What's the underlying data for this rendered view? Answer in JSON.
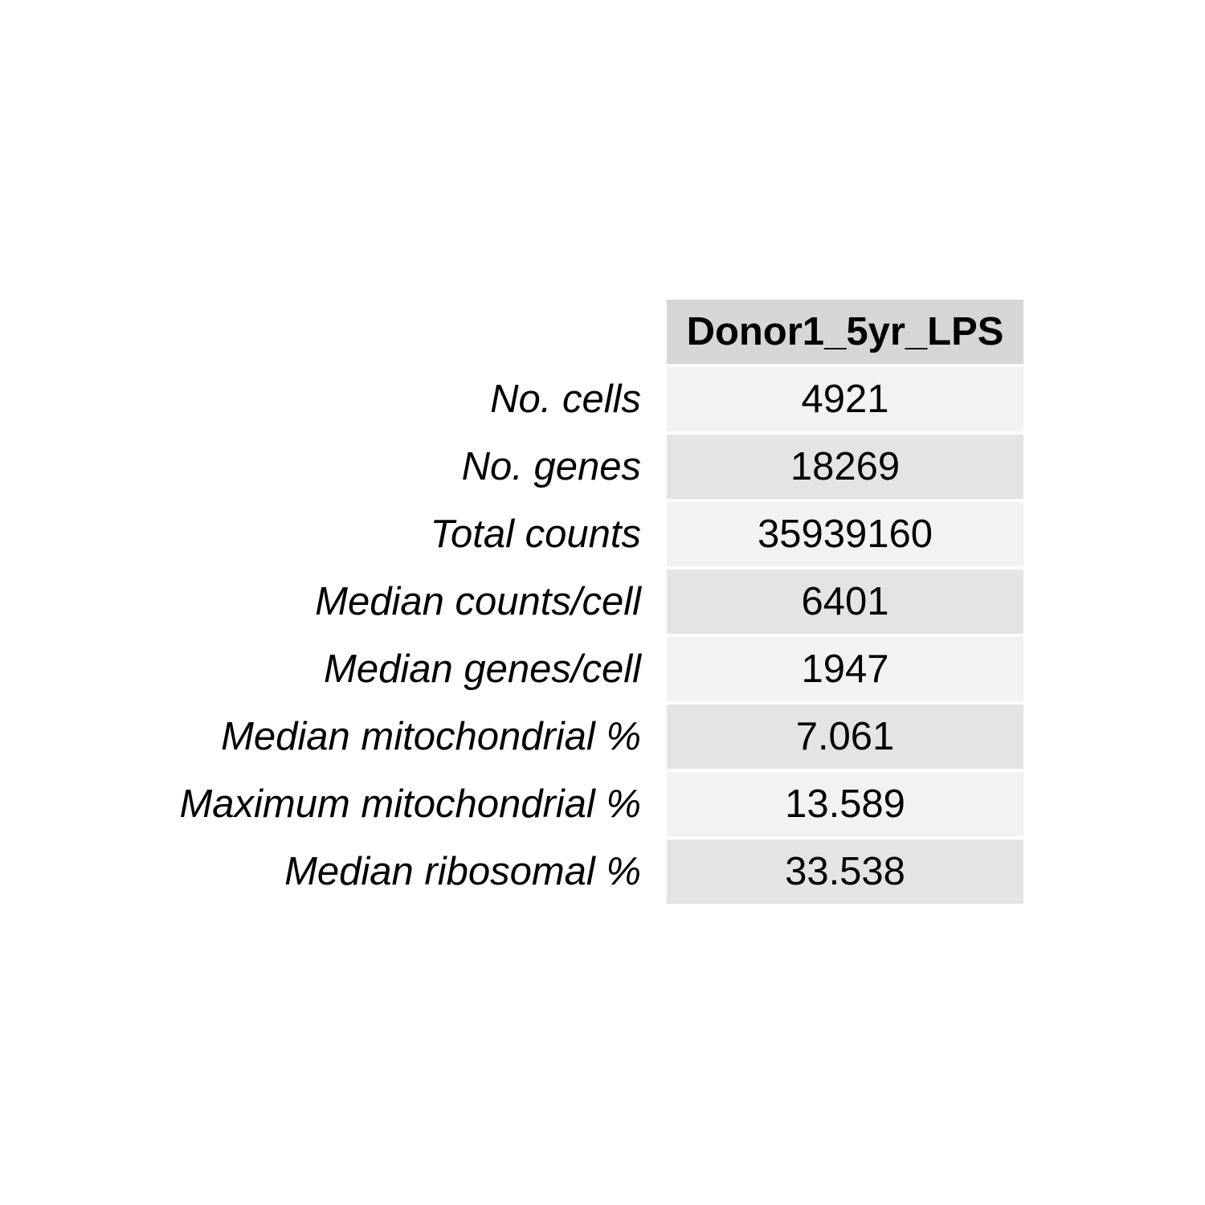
{
  "chart_data": {
    "type": "table",
    "columns": [
      "Donor1_5yr_LPS"
    ],
    "rows": [
      {
        "label": "No. cells",
        "value": "4921"
      },
      {
        "label": "No. genes",
        "value": "18269"
      },
      {
        "label": "Total counts",
        "value": "35939160"
      },
      {
        "label": "Median counts/cell",
        "value": "6401"
      },
      {
        "label": "Median genes/cell",
        "value": "1947"
      },
      {
        "label": "Median mitochondrial %",
        "value": "7.061"
      },
      {
        "label": "Maximum mitochondrial %",
        "value": "13.589"
      },
      {
        "label": "Median ribosomal %",
        "value": "33.538"
      }
    ]
  },
  "colors": {
    "header_fill": "#d6d6d6",
    "row_fill_odd": "#f2f2f2",
    "row_fill_even": "#e4e4e4",
    "text": "#000000"
  }
}
